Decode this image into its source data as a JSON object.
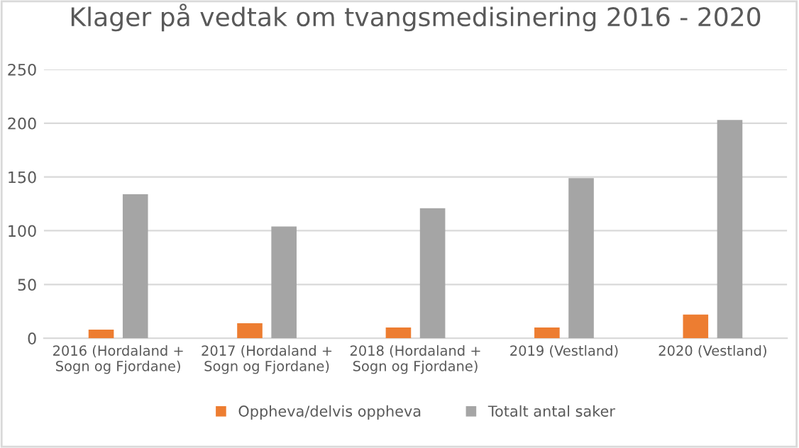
{
  "chart_data": {
    "type": "bar",
    "title": "Klager på vedtak om tvangsmedisinering 2016 - 2020",
    "categories": [
      "2016 (Hordaland +\nSogn og Fjordane)",
      "2017 (Hordaland +\nSogn og Fjordane)",
      "2018 (Hordaland +\nSogn og Fjordane)",
      "2019 (Vestland)",
      "2020 (Vestland)"
    ],
    "series": [
      {
        "name": "Oppheva/delvis oppheva",
        "color": "#ed7d31",
        "values": [
          8,
          14,
          10,
          10,
          22
        ]
      },
      {
        "name": "Totalt antal saker",
        "color": "#a5a5a5",
        "values": [
          134,
          104,
          121,
          149,
          203
        ]
      }
    ],
    "ylim": [
      0,
      250
    ],
    "yticks": [
      0,
      50,
      100,
      150,
      200,
      250
    ],
    "grid": "y",
    "legend": "bottom"
  }
}
